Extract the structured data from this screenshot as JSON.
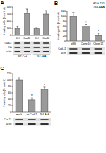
{
  "chart_data": [
    {
      "type": "bar",
      "title": "A",
      "y_label": "Invading cells (% control)",
      "categories": [
        "Ctrl",
        "Cad11",
        "Ctrl",
        "Cad11"
      ],
      "values": [
        100,
        310,
        95,
        300
      ],
      "errors": [
        30,
        60,
        15,
        50
      ],
      "groups": [
        "WT-Cad",
        "WT-Cad",
        "764-AAA",
        "764-AAA"
      ],
      "blots": [
        "Cad11",
        "HA",
        "actin"
      ],
      "ylim": [
        0,
        400
      ],
      "yticks": [
        0,
        100,
        200,
        300,
        400
      ],
      "color": "#9a9a9a"
    },
    {
      "type": "bar",
      "title": "B",
      "annotations": [
        "MDA-231",
        "764-AAA"
      ],
      "y_label": "Invading cells (% control)",
      "categories": [
        "pBS",
        "Clone 10",
        "Clone 12"
      ],
      "values": [
        100,
        62,
        22
      ],
      "errors": [
        15,
        5,
        10
      ],
      "significance": [
        null,
        "*",
        "*"
      ],
      "blots": [
        "Cad-11",
        "actin"
      ],
      "ylim": [
        0,
        120
      ],
      "yticks": [
        0,
        20,
        40,
        60,
        80,
        100,
        120
      ],
      "color": "#9a9a9a"
    },
    {
      "type": "bar",
      "title": "C",
      "y_label": "Invading cells (% control)",
      "categories": [
        "mock",
        "wt-Cad11",
        "764-AAA"
      ],
      "values": [
        100,
        38,
        70
      ],
      "errors": [
        10,
        6,
        8
      ],
      "significance": [
        null,
        "*",
        "*"
      ],
      "blots": [
        "Cad 11",
        "actin"
      ],
      "ylim": [
        0,
        120
      ],
      "yticks": [
        0,
        20,
        40,
        60,
        80,
        100,
        120
      ],
      "color": "#9a9a9a"
    }
  ]
}
